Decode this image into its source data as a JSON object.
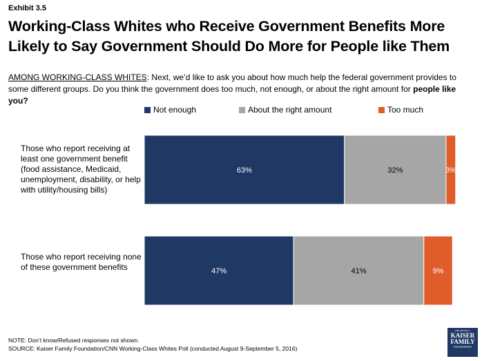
{
  "header": {
    "exhibit": "Exhibit 3.5",
    "title": "Working-Class Whites who Receive Government Benefits More Likely to Say Government Should Do More for People like Them",
    "question_lead": "AMONG WORKING-CLASS WHITES",
    "question_body": ": Next, we’d like to ask you about how much help the federal government provides to some different groups. Do you think the government does too much, not enough, or about the right amount for ",
    "question_bold": "people like you?"
  },
  "chart_data": {
    "type": "bar",
    "orientation": "horizontal",
    "stacked": true,
    "categories": [
      "Those who report receiving at least one government benefit (food assistance, Medicaid, unemployment, disability, or help with utility/housing bills)",
      "Those who report receiving none of these government benefits"
    ],
    "series": [
      {
        "name": "Not enough",
        "values": [
          63,
          47
        ],
        "labels": [
          "63%",
          "47%"
        ],
        "color": "#1f3864",
        "label_color": "#ffffff"
      },
      {
        "name": "About the right amount",
        "values": [
          32,
          41
        ],
        "labels": [
          "32%",
          "41%"
        ],
        "color": "#a6a6a6",
        "label_color": "#000000"
      },
      {
        "name": "Too much",
        "values": [
          3,
          9
        ],
        "labels": [
          "3%",
          "9%"
        ],
        "color": "#e05c2a",
        "label_color": "#ffffff"
      }
    ],
    "xlim": [
      0,
      100
    ],
    "legend_position": "top",
    "grid": false
  },
  "footer": {
    "note": "NOTE: Don’t know/Refused responses not shown.",
    "source": "SOURCE: Kaiser Family Foundation/CNN Working-Class Whites Poll (conducted August 9-September 5, 2016)"
  },
  "logo": {
    "line1": "THE HENRY J.",
    "line2": "KAISER",
    "line3": "FAMILY",
    "line4": "FOUNDATION"
  }
}
